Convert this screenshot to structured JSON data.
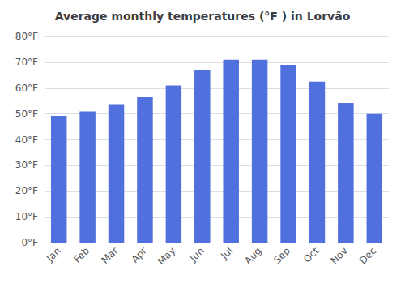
{
  "chart_data": {
    "type": "bar",
    "title": "Average monthly temperatures (°F ) in Lorvão",
    "categories": [
      "Jan",
      "Feb",
      "Mar",
      "Apr",
      "May",
      "Jun",
      "Jul",
      "Aug",
      "Sep",
      "Oct",
      "Nov",
      "Dec"
    ],
    "values": [
      49.0,
      51.0,
      53.5,
      56.5,
      61.0,
      67.0,
      71.0,
      71.0,
      69.0,
      62.5,
      54.0,
      50.0
    ],
    "ylim": [
      0,
      80
    ],
    "yticks": [
      {
        "value": 0,
        "label": "0°F"
      },
      {
        "value": 10,
        "label": "10°F"
      },
      {
        "value": 20,
        "label": "20°F"
      },
      {
        "value": 30,
        "label": "30°F"
      },
      {
        "value": 40,
        "label": "40°F"
      },
      {
        "value": 50,
        "label": "50°F"
      },
      {
        "value": 60,
        "label": "60°F"
      },
      {
        "value": 70,
        "label": "70°F"
      },
      {
        "value": 80,
        "label": "80°F"
      }
    ],
    "grid": true
  }
}
